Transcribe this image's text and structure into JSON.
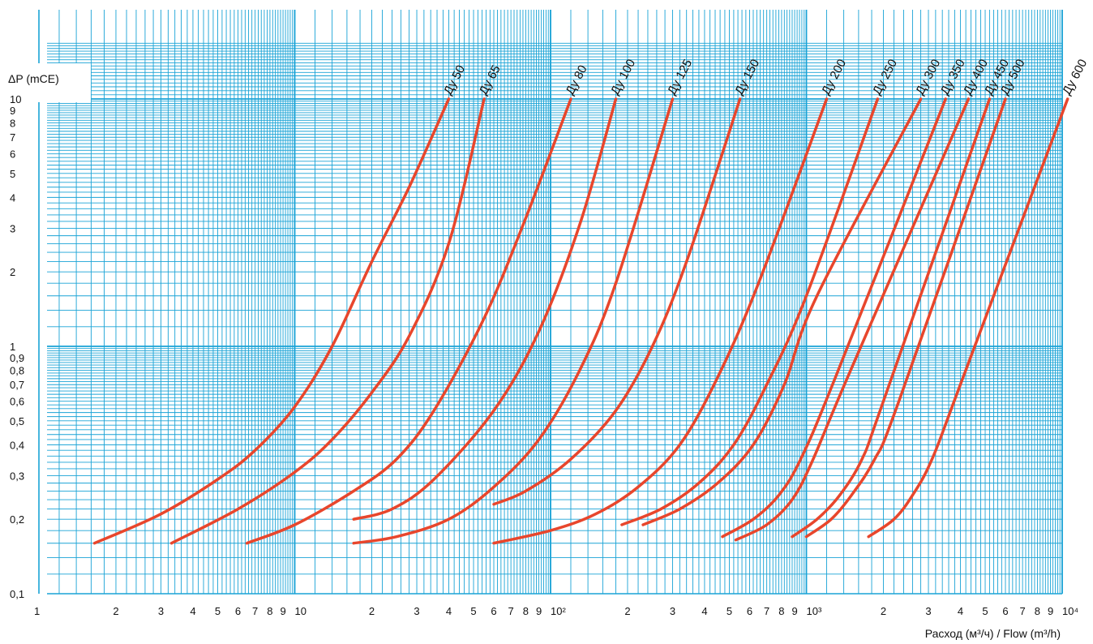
{
  "chart_data": {
    "type": "line",
    "x_scale": "log",
    "y_scale": "log",
    "xlim": [
      1,
      10000
    ],
    "ylim": [
      0.1,
      10
    ],
    "xlabel": "Расход (м³/ч) / Flow (m³/h)",
    "ylabel": "ΔP (mCE)",
    "grid": true,
    "grid_color": "#1aa3d6",
    "line_color": "#e8462c",
    "x_tick_labels": [
      {
        "v": 1,
        "t": "1"
      },
      {
        "v": 2,
        "t": "2"
      },
      {
        "v": 3,
        "t": "3"
      },
      {
        "v": 4,
        "t": "4"
      },
      {
        "v": 5,
        "t": "5"
      },
      {
        "v": 6,
        "t": "6"
      },
      {
        "v": 7,
        "t": "7"
      },
      {
        "v": 8,
        "t": "8"
      },
      {
        "v": 9,
        "t": "9"
      },
      {
        "v": 10,
        "t": "10"
      },
      {
        "v": 20,
        "t": "2"
      },
      {
        "v": 30,
        "t": "3"
      },
      {
        "v": 40,
        "t": "4"
      },
      {
        "v": 50,
        "t": "5"
      },
      {
        "v": 60,
        "t": "6"
      },
      {
        "v": 70,
        "t": "7"
      },
      {
        "v": 80,
        "t": "8"
      },
      {
        "v": 90,
        "t": "9"
      },
      {
        "v": 100,
        "t": "10²"
      },
      {
        "v": 200,
        "t": "2"
      },
      {
        "v": 300,
        "t": "3"
      },
      {
        "v": 400,
        "t": "4"
      },
      {
        "v": 500,
        "t": "5"
      },
      {
        "v": 600,
        "t": "6"
      },
      {
        "v": 700,
        "t": "7"
      },
      {
        "v": 800,
        "t": "8"
      },
      {
        "v": 900,
        "t": "9"
      },
      {
        "v": 1000,
        "t": "10³"
      },
      {
        "v": 2000,
        "t": "2"
      },
      {
        "v": 3000,
        "t": "3"
      },
      {
        "v": 4000,
        "t": "4"
      },
      {
        "v": 5000,
        "t": "5"
      },
      {
        "v": 6000,
        "t": "6"
      },
      {
        "v": 7000,
        "t": "7"
      },
      {
        "v": 8000,
        "t": "8"
      },
      {
        "v": 9000,
        "t": "9"
      },
      {
        "v": 10000,
        "t": "10⁴"
      }
    ],
    "y_tick_labels": [
      {
        "v": 0.1,
        "t": "0,1"
      },
      {
        "v": 0.2,
        "t": "0,2"
      },
      {
        "v": 0.3,
        "t": "0,3"
      },
      {
        "v": 0.4,
        "t": "0,4"
      },
      {
        "v": 0.5,
        "t": "0,5"
      },
      {
        "v": 0.6,
        "t": "0,6"
      },
      {
        "v": 0.7,
        "t": "0,7"
      },
      {
        "v": 0.8,
        "t": "0,8"
      },
      {
        "v": 0.9,
        "t": "0,9"
      },
      {
        "v": 1,
        "t": "1"
      },
      {
        "v": 2,
        "t": "2"
      },
      {
        "v": 3,
        "t": "3"
      },
      {
        "v": 4,
        "t": "4"
      },
      {
        "v": 5,
        "t": "5"
      },
      {
        "v": 6,
        "t": "6"
      },
      {
        "v": 7,
        "t": "7"
      },
      {
        "v": 8,
        "t": "8"
      },
      {
        "v": 9,
        "t": "9"
      },
      {
        "v": 10,
        "t": "10"
      }
    ],
    "series": [
      {
        "name": "Ду 50",
        "x": [
          1.65,
          3,
          5,
          7,
          10,
          14,
          20,
          28,
          40
        ],
        "y": [
          0.16,
          0.21,
          0.29,
          0.38,
          0.57,
          1.0,
          2.2,
          4.4,
          10
        ]
      },
      {
        "name": "Ду 65",
        "x": [
          3.3,
          6,
          10,
          14,
          20,
          28,
          40,
          55
        ],
        "y": [
          0.16,
          0.22,
          0.31,
          0.42,
          0.65,
          1.1,
          2.6,
          10
        ]
      },
      {
        "name": "Ду 80",
        "x": [
          6.5,
          10,
          17,
          25,
          35,
          55,
          80,
          120
        ],
        "y": [
          0.16,
          0.19,
          0.26,
          0.35,
          0.55,
          1.3,
          3.3,
          10
        ]
      },
      {
        "name": "Ду 100",
        "x": [
          17,
          24,
          35,
          60,
          90,
          130,
          180
        ],
        "y": [
          0.2,
          0.22,
          0.29,
          0.55,
          1.15,
          3.1,
          10
        ]
      },
      {
        "name": "Ду 125",
        "x": [
          17,
          25,
          40,
          60,
          90,
          130,
          180,
          300
        ],
        "y": [
          0.16,
          0.17,
          0.2,
          0.27,
          0.42,
          0.8,
          1.8,
          10
        ]
      },
      {
        "name": "Ду 150",
        "x": [
          60,
          80,
          120,
          180,
          250,
          340,
          550
        ],
        "y": [
          0.23,
          0.26,
          0.35,
          0.55,
          1.0,
          2.2,
          10
        ]
      },
      {
        "name": "Ду 200",
        "x": [
          60,
          100,
          150,
          220,
          320,
          450,
          650,
          1200
        ],
        "y": [
          0.16,
          0.18,
          0.21,
          0.27,
          0.4,
          0.75,
          1.8,
          10
        ]
      },
      {
        "name": "Ду 250",
        "x": [
          190,
          270,
          380,
          520,
          700,
          1000,
          1900
        ],
        "y": [
          0.19,
          0.22,
          0.28,
          0.4,
          0.7,
          1.6,
          10
        ]
      },
      {
        "name": "Ду 300",
        "x": [
          230,
          320,
          450,
          620,
          820,
          1100,
          2800
        ],
        "y": [
          0.19,
          0.22,
          0.28,
          0.4,
          0.7,
          1.6,
          10
        ]
      },
      {
        "name": "Ду 350",
        "x": [
          470,
          620,
          780,
          950,
          1300,
          3500
        ],
        "y": [
          0.17,
          0.2,
          0.25,
          0.35,
          0.75,
          10
        ]
      },
      {
        "name": "Ду 400",
        "x": [
          530,
          700,
          880,
          1050,
          1450,
          4300
        ],
        "y": [
          0.165,
          0.19,
          0.24,
          0.34,
          0.75,
          10
        ]
      },
      {
        "name": "Ду 450",
        "x": [
          880,
          1100,
          1350,
          1650,
          2000,
          5200
        ],
        "y": [
          0.17,
          0.2,
          0.25,
          0.35,
          0.6,
          10
        ]
      },
      {
        "name": "Ду 500",
        "x": [
          1000,
          1250,
          1500,
          1850,
          2300,
          6000
        ],
        "y": [
          0.17,
          0.2,
          0.25,
          0.35,
          0.6,
          10
        ]
      },
      {
        "name": "Ду 600",
        "x": [
          1750,
          2200,
          2600,
          3100,
          4000,
          10500
        ],
        "y": [
          0.17,
          0.2,
          0.25,
          0.35,
          0.7,
          10
        ]
      }
    ]
  }
}
